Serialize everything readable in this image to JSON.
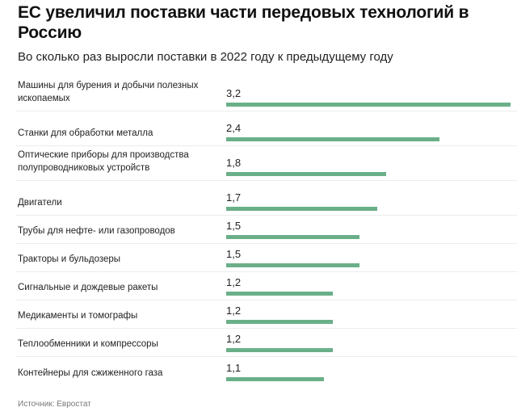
{
  "chart_data": {
    "type": "bar",
    "orientation": "horizontal",
    "title": "ЕС увеличил поставки части передовых технологий в Россию",
    "subtitle": "Во сколько раз выросли поставки в 2022 году к предыдущему году",
    "categories": [
      "Машины для бурения и добычи полезных ископаемых",
      "Станки для обработки металла",
      "Оптические приборы для производства полупроводниковых устройств",
      "Двигатели",
      "Трубы для нефте- или газопроводов",
      "Тракторы и бульдозеры",
      "Сигнальные и дождевые ракеты",
      "Медикаменты и томографы",
      "Теплообменники и компрессоры",
      "Контейнеры для сжиженного газа"
    ],
    "values": [
      3.2,
      2.4,
      1.8,
      1.7,
      1.5,
      1.5,
      1.2,
      1.2,
      1.2,
      1.1
    ],
    "value_labels": [
      "3,2",
      "2,4",
      "1,8",
      "1,7",
      "1,5",
      "1,5",
      "1,2",
      "1,2",
      "1,2",
      "1,1"
    ],
    "bar_color": "#6aaf89",
    "xlim": [
      0,
      3.2
    ],
    "grid": false,
    "source": "Источник: Евростат"
  }
}
